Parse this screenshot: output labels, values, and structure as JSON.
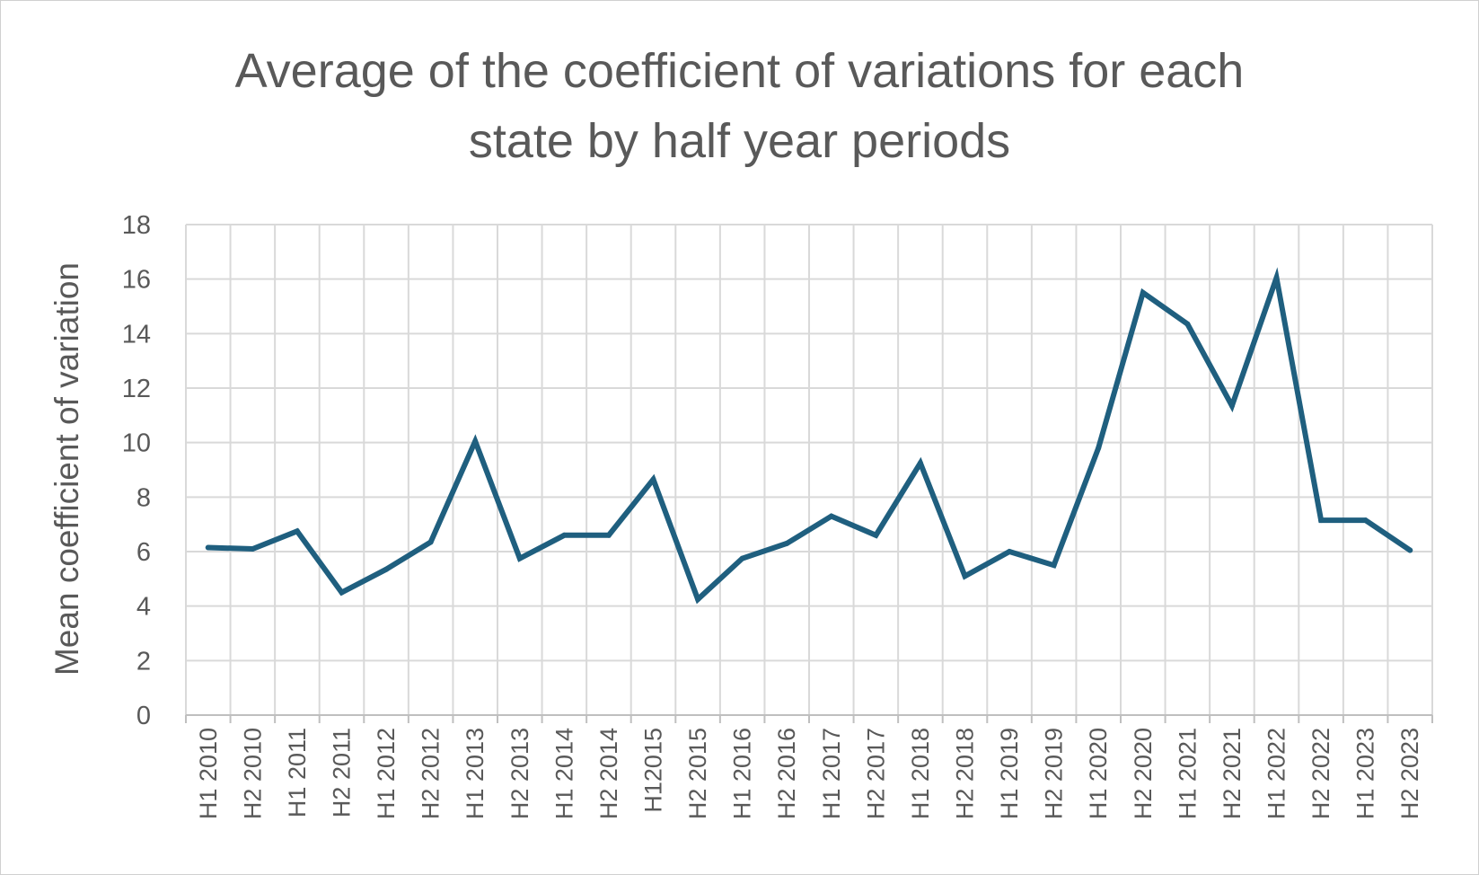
{
  "chart_data": {
    "type": "line",
    "title_line1": "Average of the coefficient of variations for each",
    "title_line2": "state by half year periods",
    "xlabel": "",
    "ylabel": "Mean coefficient of variation",
    "ylim": [
      0,
      18
    ],
    "yticks": [
      0,
      2,
      4,
      6,
      8,
      10,
      12,
      14,
      16,
      18
    ],
    "grid": true,
    "legend": "none",
    "line_color": "#1f5f7f",
    "categories": [
      "H1 2010",
      "H2 2010",
      "H1 2011",
      "H2 2011",
      "H1 2012",
      "H2 2012",
      "H1 2013",
      "H2 2013",
      "H1 2014",
      "H2 2014",
      "H12015",
      "H2 2015",
      "H1 2016",
      "H2 2016",
      "H1 2017",
      "H2 2017",
      "H1 2018",
      "H2 2018",
      "H1 2019",
      "H2 2019",
      "H1 2020",
      "H2 2020",
      "H1 2021",
      "H2 2021",
      "H1 2022",
      "H2 2022",
      "H1 2023",
      "H2 2023"
    ],
    "series": [
      {
        "values": [
          6.15,
          6.1,
          6.75,
          4.5,
          5.35,
          6.35,
          10.05,
          5.75,
          6.6,
          6.6,
          8.65,
          4.25,
          5.75,
          6.3,
          7.3,
          6.6,
          9.25,
          5.1,
          6.0,
          5.5,
          9.8,
          15.5,
          14.35,
          11.35,
          16.05,
          7.15,
          7.15,
          6.05
        ]
      }
    ]
  }
}
